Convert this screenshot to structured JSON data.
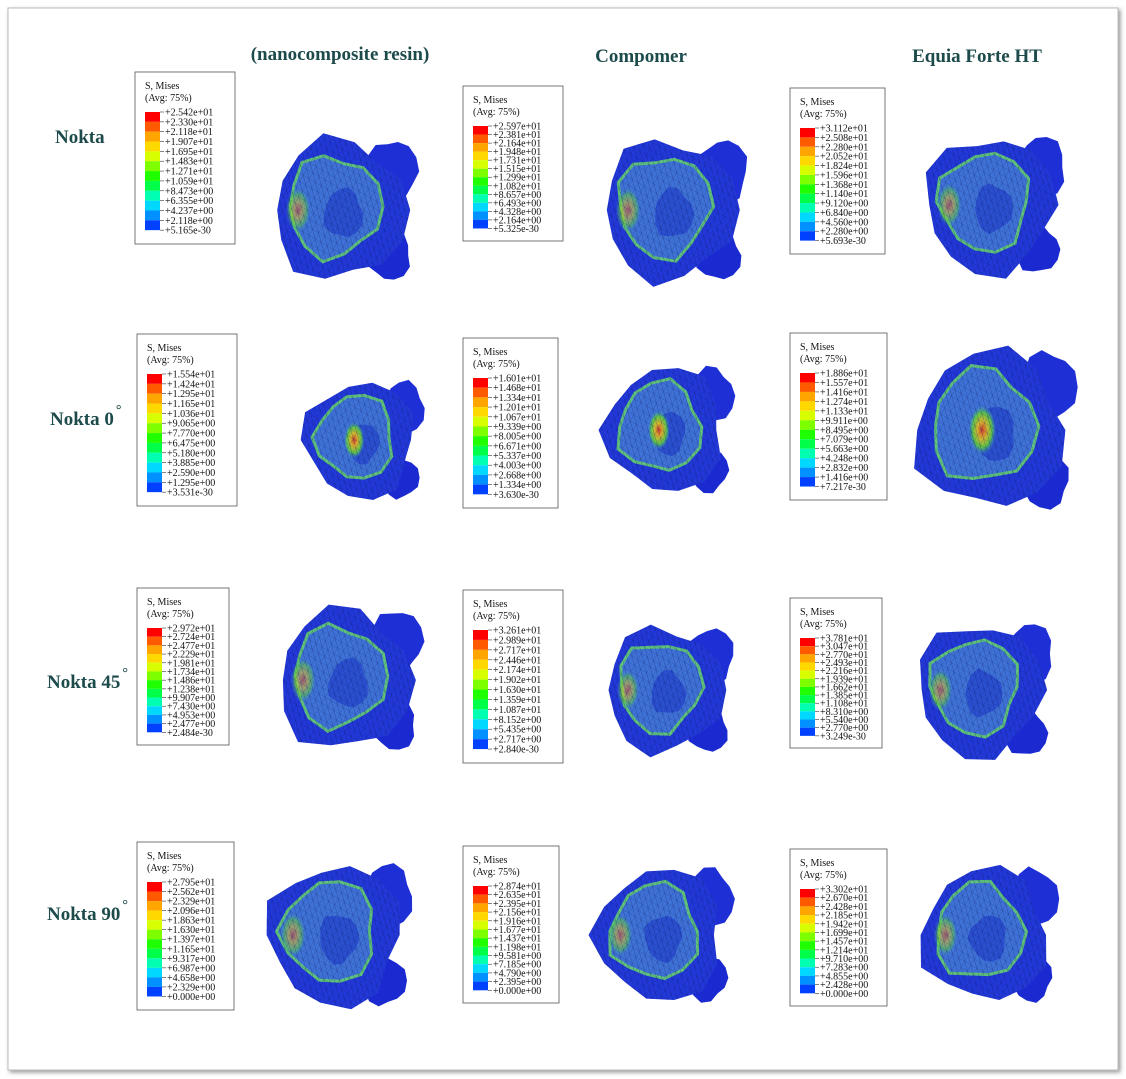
{
  "header": {
    "columns": [
      "(nanocomposite resin)",
      "Compomer",
      "Equia Forte HT"
    ]
  },
  "grid": {
    "rows": [
      {
        "label": "Nokta",
        "superscript": null,
        "cells": [
          {
            "title": "S, Mises",
            "avg": "(Avg: 75%)",
            "labels": [
              "+2.542e+01",
              "+2.330e+01",
              "+2.118e+01",
              "+1.907e+01",
              "+1.695e+01",
              "+1.483e+01",
              "+1.271e+01",
              "+1.059e+01",
              "+8.473e+00",
              "+6.355e+00",
              "+4.237e+00",
              "+2.118e+00",
              "+5.165e-30"
            ]
          },
          {
            "title": "S, Mises",
            "avg": "(Avg: 75%)",
            "labels": [
              "+2.597e+01",
              "+2.381e+01",
              "+2.164e+01",
              "+1.948e+01",
              "+1.731e+01",
              "+1.515e+01",
              "+1.299e+01",
              "+1.082e+01",
              "+8.657e+00",
              "+6.493e+00",
              "+4.328e+00",
              "+2.164e+00",
              "+5.325e-30"
            ]
          },
          {
            "title": "S, Mises",
            "avg": "(Avg: 75%)",
            "labels": [
              "+3.112e+01",
              "+2.508e+01",
              "+2.280e+01",
              "+2.052e+01",
              "+1.824e+01",
              "+1.596e+01",
              "+1.368e+01",
              "+1.140e+01",
              "+9.120e+00",
              "+6.840e+00",
              "+4.560e+00",
              "+2.280e+00",
              "+5.693e-30"
            ]
          }
        ]
      },
      {
        "label": "Nokta 0",
        "superscript": "°",
        "cells": [
          {
            "title": "S, Mises",
            "avg": "(Avg: 75%)",
            "labels": [
              "+1.554e+01",
              "+1.424e+01",
              "+1.295e+01",
              "+1.165e+01",
              "+1.036e+01",
              "+9.065e+00",
              "+7.770e+00",
              "+6.475e+00",
              "+5.180e+00",
              "+3.885e+00",
              "+2.590e+00",
              "+1.295e+00",
              "+3.531e-30"
            ]
          },
          {
            "title": "S, Mises",
            "avg": "(Avg: 75%)",
            "labels": [
              "+1.601e+01",
              "+1.468e+01",
              "+1.334e+01",
              "+1.201e+01",
              "+1.067e+01",
              "+9.339e+00",
              "+8.005e+00",
              "+6.671e+00",
              "+5.337e+00",
              "+4.003e+00",
              "+2.668e+00",
              "+1.334e+00",
              "+3.630e-30"
            ]
          },
          {
            "title": "S, Mises",
            "avg": "(Avg: 75%)",
            "labels": [
              "+1.886e+01",
              "+1.557e+01",
              "+1.416e+01",
              "+1.274e+01",
              "+1.133e+01",
              "+9.911e+00",
              "+8.495e+00",
              "+7.079e+00",
              "+5.663e+00",
              "+4.248e+00",
              "+2.832e+00",
              "+1.416e+00",
              "+7.217e-30"
            ]
          }
        ]
      },
      {
        "label": "Nokta 45",
        "superscript": "°",
        "cells": [
          {
            "title": "S, Mises",
            "avg": "(Avg: 75%)",
            "labels": [
              "+2.972e+01",
              "+2.724e+01",
              "+2.477e+01",
              "+2.229e+01",
              "+1.981e+01",
              "+1.734e+01",
              "+1.486e+01",
              "+1.238e+01",
              "+9.907e+00",
              "+7.430e+00",
              "+4.953e+00",
              "+2.477e+00",
              "+2.484e-30"
            ]
          },
          {
            "title": "S, Mises",
            "avg": "(Avg: 75%)",
            "labels": [
              "+3.261e+01",
              "+2.989e+01",
              "+2.717e+01",
              "+2.446e+01",
              "+2.174e+01",
              "+1.902e+01",
              "+1.630e+01",
              "+1.359e+01",
              "+1.087e+01",
              "+8.152e+00",
              "+5.435e+00",
              "+2.717e+00",
              "+2.840e-30"
            ]
          },
          {
            "title": "S, Mises",
            "avg": "(Avg: 75%)",
            "labels": [
              "+3.781e+01",
              "+3.047e+01",
              "+2.770e+01",
              "+2.493e+01",
              "+2.216e+01",
              "+1.939e+01",
              "+1.662e+01",
              "+1.385e+01",
              "+1.108e+01",
              "+8.310e+00",
              "+5.540e+00",
              "+2.770e+00",
              "+3.249e-30"
            ]
          }
        ]
      },
      {
        "label": "Nokta 90",
        "superscript": "°",
        "cells": [
          {
            "title": "S, Mises",
            "avg": "(Avg: 75%)",
            "labels": [
              "+2.795e+01",
              "+2.562e+01",
              "+2.329e+01",
              "+2.096e+01",
              "+1.863e+01",
              "+1.630e+01",
              "+1.397e+01",
              "+1.165e+01",
              "+9.317e+00",
              "+6.987e+00",
              "+4.658e+00",
              "+2.329e+00",
              "+0.000e+00"
            ]
          },
          {
            "title": "S, Mises",
            "avg": "(Avg: 75%)",
            "labels": [
              "+2.874e+01",
              "+2.635e+01",
              "+2.395e+01",
              "+2.156e+01",
              "+1.916e+01",
              "+1.677e+01",
              "+1.437e+01",
              "+1.198e+01",
              "+9.581e+00",
              "+7.185e+00",
              "+4.790e+00",
              "+2.395e+00",
              "+0.000e+00"
            ]
          },
          {
            "title": "S, Mises",
            "avg": "(Avg: 75%)",
            "labels": [
              "+3.302e+01",
              "+2.670e+01",
              "+2.428e+01",
              "+2.185e+01",
              "+1.942e+01",
              "+1.699e+01",
              "+1.457e+01",
              "+1.214e+01",
              "+9.710e+00",
              "+7.283e+00",
              "+4.855e+00",
              "+2.428e+00",
              "+0.000e+00"
            ]
          }
        ]
      }
    ]
  }
}
